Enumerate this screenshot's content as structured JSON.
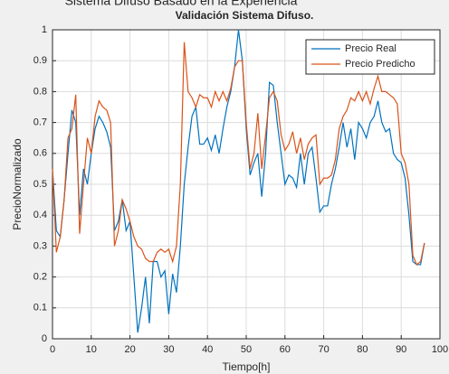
{
  "heading": "Sistema Difuso Basado en la Experiencia",
  "chart_data": {
    "type": "line",
    "title": "Validación Sistema Difuso.",
    "xlabel": "Tiempo[h]",
    "ylabel": "PrecioNormalizado",
    "x": [
      0,
      1,
      2,
      3,
      4,
      5,
      6,
      7,
      8,
      9,
      10,
      11,
      12,
      13,
      14,
      15,
      16,
      17,
      18,
      19,
      20,
      21,
      22,
      23,
      24,
      25,
      26,
      27,
      28,
      29,
      30,
      31,
      32,
      33,
      34,
      35,
      36,
      37,
      38,
      39,
      40,
      41,
      42,
      43,
      44,
      45,
      46,
      47,
      48,
      49,
      50,
      51,
      52,
      53,
      54,
      55,
      56,
      57,
      58,
      59,
      60,
      61,
      62,
      63,
      64,
      65,
      66,
      67,
      68,
      69,
      70,
      71,
      72,
      73,
      74,
      75,
      76,
      77,
      78,
      79,
      80,
      81,
      82,
      83,
      84,
      85,
      86,
      87,
      88,
      89,
      90,
      91,
      92,
      93,
      94,
      95,
      96
    ],
    "series": [
      {
        "name": "Precio Real",
        "color": "#0072bd",
        "values": [
          0.55,
          0.35,
          0.33,
          0.45,
          0.6,
          0.74,
          0.7,
          0.4,
          0.55,
          0.5,
          0.6,
          0.68,
          0.72,
          0.7,
          0.67,
          0.62,
          0.35,
          0.38,
          0.45,
          0.35,
          0.38,
          0.2,
          0.02,
          0.1,
          0.2,
          0.05,
          0.25,
          0.25,
          0.2,
          0.22,
          0.08,
          0.21,
          0.15,
          0.3,
          0.5,
          0.62,
          0.72,
          0.75,
          0.63,
          0.63,
          0.65,
          0.61,
          0.66,
          0.6,
          0.68,
          0.75,
          0.8,
          0.88,
          1.0,
          0.9,
          0.68,
          0.53,
          0.57,
          0.6,
          0.46,
          0.6,
          0.83,
          0.82,
          0.7,
          0.6,
          0.5,
          0.53,
          0.52,
          0.49,
          0.6,
          0.5,
          0.6,
          0.62,
          0.52,
          0.41,
          0.43,
          0.43,
          0.5,
          0.55,
          0.62,
          0.7,
          0.62,
          0.68,
          0.58,
          0.7,
          0.68,
          0.65,
          0.7,
          0.72,
          0.77,
          0.7,
          0.67,
          0.68,
          0.6,
          0.58,
          0.57,
          0.52,
          0.4,
          0.25,
          0.24,
          0.24,
          0.31
        ]
      },
      {
        "name": "Precio Predicho",
        "color": "#d95319",
        "values": [
          0.55,
          0.28,
          0.33,
          0.45,
          0.65,
          0.68,
          0.79,
          0.34,
          0.5,
          0.65,
          0.6,
          0.72,
          0.77,
          0.75,
          0.74,
          0.7,
          0.3,
          0.35,
          0.45,
          0.42,
          0.38,
          0.33,
          0.3,
          0.29,
          0.26,
          0.25,
          0.25,
          0.28,
          0.29,
          0.28,
          0.29,
          0.25,
          0.3,
          0.5,
          0.96,
          0.8,
          0.78,
          0.75,
          0.79,
          0.78,
          0.78,
          0.75,
          0.8,
          0.77,
          0.8,
          0.77,
          0.81,
          0.88,
          0.9,
          0.9,
          0.7,
          0.55,
          0.6,
          0.73,
          0.55,
          0.66,
          0.78,
          0.8,
          0.77,
          0.66,
          0.61,
          0.63,
          0.67,
          0.6,
          0.65,
          0.58,
          0.63,
          0.65,
          0.66,
          0.5,
          0.52,
          0.52,
          0.53,
          0.58,
          0.68,
          0.72,
          0.74,
          0.78,
          0.77,
          0.8,
          0.77,
          0.8,
          0.76,
          0.81,
          0.85,
          0.8,
          0.8,
          0.79,
          0.78,
          0.76,
          0.6,
          0.57,
          0.5,
          0.27,
          0.24,
          0.25,
          0.31
        ]
      }
    ],
    "xlim": [
      0,
      100
    ],
    "xticks": [
      0,
      10,
      20,
      30,
      40,
      50,
      60,
      70,
      80,
      90,
      100
    ],
    "ylim": [
      0,
      1
    ],
    "yticks": [
      0,
      0.1,
      0.2,
      0.3,
      0.4,
      0.5,
      0.6,
      0.7,
      0.8,
      0.9,
      1
    ],
    "grid": true,
    "legend": "northeast"
  }
}
